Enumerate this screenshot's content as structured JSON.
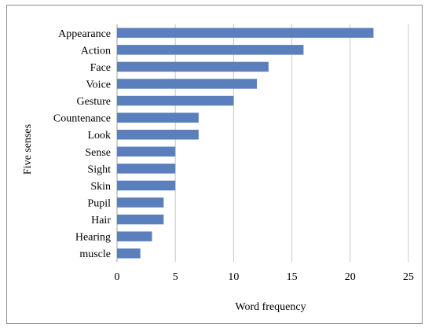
{
  "chart_data": {
    "type": "bar",
    "orientation": "horizontal",
    "categories": [
      "Appearance",
      "Action",
      "Face",
      "Voice",
      "Gesture",
      "Countenance",
      "Look",
      "Sense",
      "Sight",
      "Skin",
      "Pupil",
      "Hair",
      "Hearing",
      "muscle"
    ],
    "values": [
      22,
      16,
      13,
      12,
      10,
      7,
      7,
      5,
      5,
      5,
      4,
      4,
      3,
      2
    ],
    "xlabel": "Word frequency",
    "ylabel": "Five senses",
    "xlim": [
      0,
      25
    ],
    "xticks": [
      0,
      5,
      10,
      15,
      20,
      25
    ],
    "grid": "vertical",
    "legend": "none",
    "colors": {
      "bar": "#5b7fbc",
      "grid": "#c8c8c8",
      "axis": "#a0a0a0"
    }
  }
}
